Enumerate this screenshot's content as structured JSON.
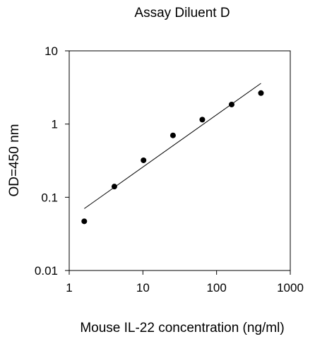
{
  "chart_data": {
    "type": "scatter",
    "title": "Assay Diluent D",
    "xlabel": "Mouse IL-22 concentration (ng/ml)",
    "ylabel": "OD=450 nm",
    "xscale": "log",
    "yscale": "log",
    "xlim": [
      1,
      1000
    ],
    "ylim": [
      0.01,
      10
    ],
    "xticks": [
      1,
      10,
      100,
      1000
    ],
    "xtick_labels": [
      "1",
      "10",
      "100",
      "1000"
    ],
    "yticks": [
      0.01,
      0.1,
      1,
      10
    ],
    "ytick_labels": [
      "0.01",
      "0.1",
      "1",
      "10"
    ],
    "grid": false,
    "legend": false,
    "series": [
      {
        "x": [
          1.6,
          4.1,
          10.2,
          25.6,
          64,
          160,
          400
        ],
        "y": [
          0.047,
          0.14,
          0.32,
          0.7,
          1.15,
          1.85,
          2.65
        ]
      }
    ],
    "fit_line": {
      "x": [
        1.6,
        400
      ],
      "y": [
        0.07,
        3.6
      ]
    },
    "colors": {
      "points": "#000000",
      "fit": "#000000",
      "axes": "#000000"
    }
  }
}
